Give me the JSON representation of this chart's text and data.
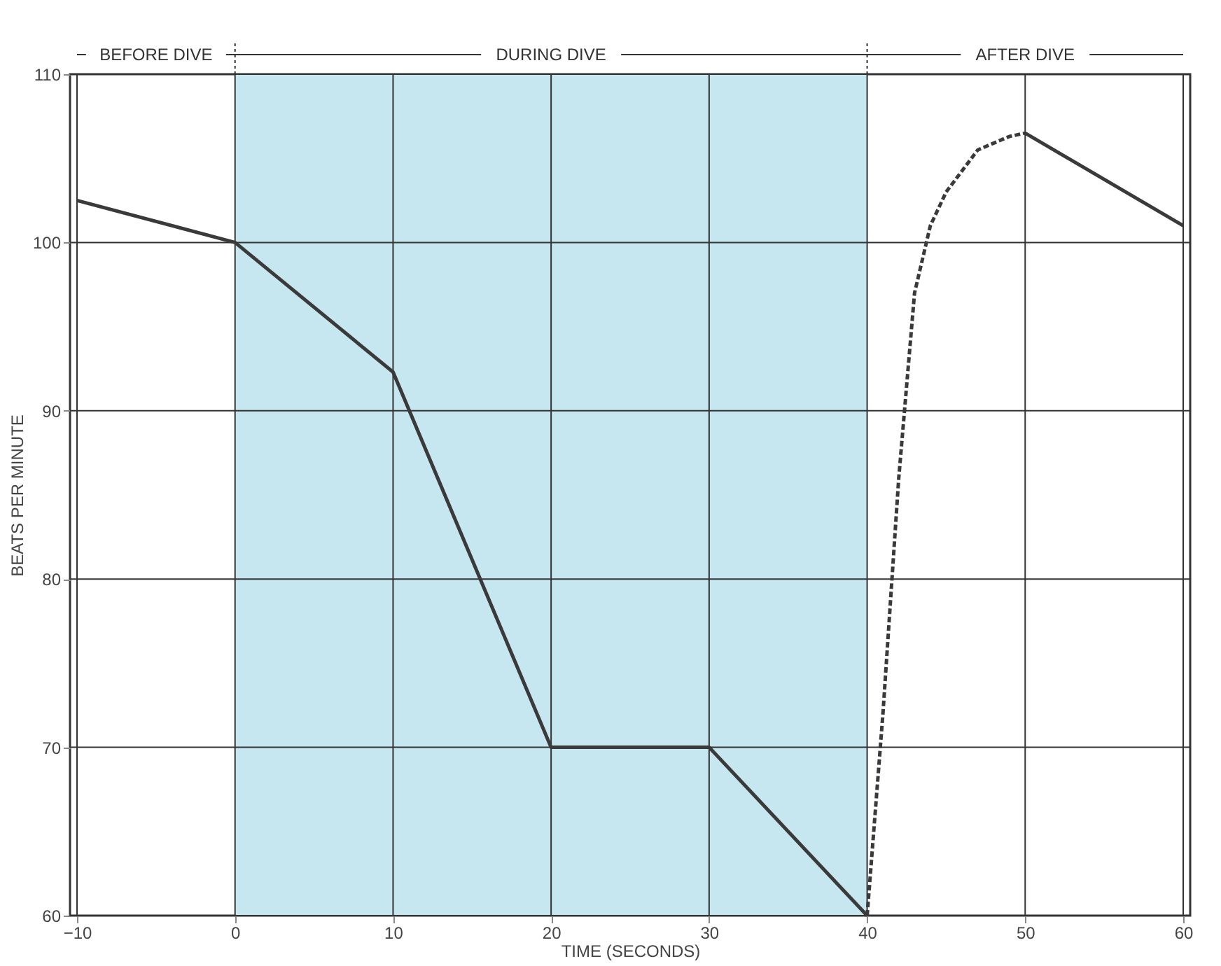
{
  "chart_data": {
    "type": "line",
    "xlabel": "TIME (SECONDS)",
    "ylabel": "BEATS PER MINUTE",
    "xlim": [
      -10,
      60
    ],
    "ylim": [
      60,
      110
    ],
    "xticks": [
      {
        "value": -10,
        "label": "−10"
      },
      0,
      10,
      20,
      30,
      40,
      50,
      60
    ],
    "yticks": [
      60,
      70,
      80,
      90,
      100,
      110
    ],
    "grid": true,
    "marker": "none",
    "series": [
      {
        "color": "#3a3a3a",
        "line_style": "solid",
        "x": [
          -10,
          0,
          10,
          20,
          30,
          40
        ],
        "values": [
          102.5,
          100,
          92.3,
          70,
          70,
          60
        ]
      },
      {
        "color": "#3a3a3a",
        "line_style": "dashed",
        "x": [
          40,
          41,
          42,
          43,
          44,
          45,
          47,
          49,
          50
        ],
        "values": [
          60,
          72,
          86,
          97,
          101,
          103,
          105.5,
          106.3,
          106.5
        ]
      },
      {
        "color": "#3a3a3a",
        "line_style": "solid",
        "x": [
          50,
          60
        ],
        "values": [
          106.5,
          101
        ]
      }
    ],
    "bands": [
      {
        "axis": "x",
        "from": 0,
        "to": 40,
        "label": "DURING DIVE",
        "color": "#c6e6f0"
      }
    ],
    "annotations": [
      "BEFORE DIVE",
      "AFTER DIVE"
    ]
  }
}
